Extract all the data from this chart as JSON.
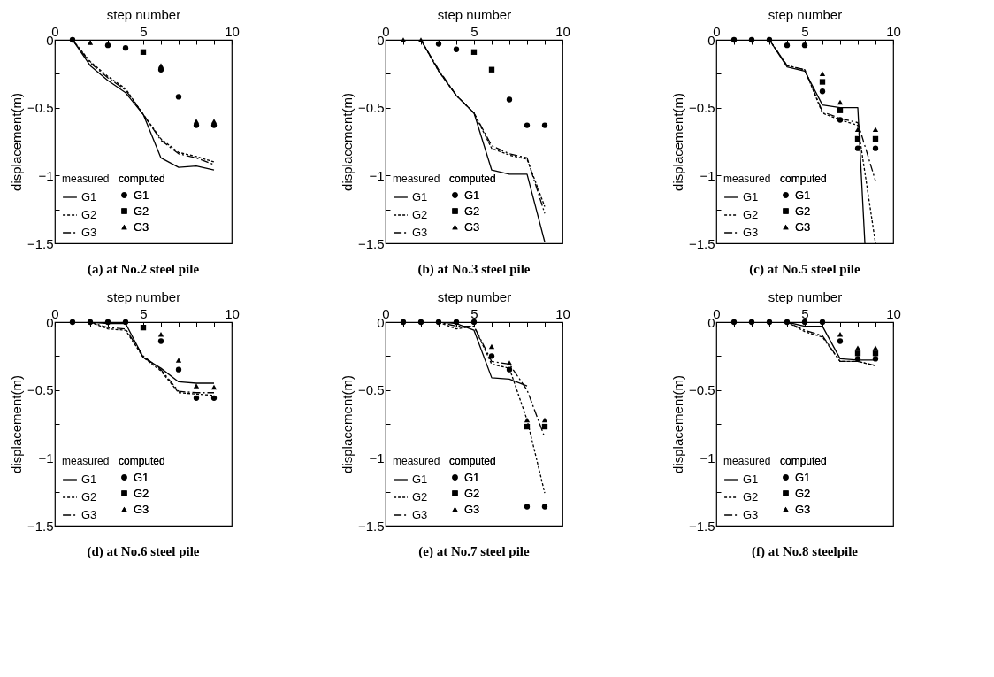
{
  "chart_data": [
    {
      "type": "line",
      "title": "(a)  at No.2 steel pile",
      "xlabel": "step number",
      "ylabel": "displacement(m)",
      "annotations": [
        "measured",
        "computed"
      ],
      "legend": "bottom left",
      "grid": false,
      "xlim": [
        0,
        10
      ],
      "ylim": [
        -1.5,
        0
      ],
      "xticks": [
        0,
        {
          "value": 1,
          "label": null
        },
        {
          "value": 2,
          "label": null
        },
        {
          "value": 3,
          "label": null
        },
        {
          "value": 4,
          "label": null
        },
        5,
        {
          "value": 6,
          "label": null
        },
        {
          "value": 7,
          "label": null
        },
        {
          "value": 8,
          "label": null
        },
        {
          "value": 9,
          "label": null
        },
        10
      ],
      "yticks": [
        0,
        {
          "value": -0.25,
          "label": null
        },
        -0.5,
        {
          "value": -0.75,
          "label": null
        },
        -1,
        {
          "value": -1.25,
          "label": null
        },
        -1.5
      ],
      "x": [
        1,
        2,
        3,
        4,
        5,
        6,
        7,
        8,
        9
      ],
      "series": [
        {
          "name": "G1",
          "type": "line",
          "line_style": "solid",
          "color": "#000000",
          "values": [
            0,
            -0.19,
            -0.3,
            -0.39,
            -0.55,
            -0.87,
            -0.94,
            -0.93,
            -0.96
          ]
        },
        {
          "name": "G2",
          "type": "line",
          "line_style": "dotted",
          "color": "#000000",
          "values": [
            0,
            -0.16,
            -0.27,
            -0.36,
            -0.55,
            -0.73,
            -0.83,
            -0.86,
            -0.9
          ]
        },
        {
          "name": "G3",
          "type": "line",
          "line_style": "dashed",
          "color": "#000000",
          "values": [
            0,
            -0.17,
            -0.28,
            -0.37,
            -0.55,
            -0.74,
            -0.84,
            -0.87,
            -0.92
          ]
        },
        {
          "name": "G1",
          "type": "scatter",
          "marker": "circle",
          "color": "#000000",
          "values": [
            0,
            null,
            -0.04,
            -0.06,
            null,
            -0.22,
            -0.42,
            -0.63,
            -0.63
          ]
        },
        {
          "name": "G2",
          "type": "scatter",
          "marker": "square",
          "color": "#000000",
          "values": [
            null,
            null,
            null,
            null,
            -0.09,
            null,
            null,
            null,
            null
          ]
        },
        {
          "name": "G3",
          "type": "scatter",
          "marker": "triangle",
          "color": "#000000",
          "values": [
            null,
            -0.02,
            null,
            null,
            null,
            -0.19,
            null,
            -0.6,
            -0.6
          ]
        }
      ]
    },
    {
      "type": "line",
      "title": "(b)  at No.3 steel pile",
      "xlabel": "step number",
      "ylabel": "displacement(m)",
      "annotations": [
        "measured",
        "computed"
      ],
      "legend": "bottom left",
      "grid": false,
      "xlim": [
        0,
        10
      ],
      "ylim": [
        -1.5,
        0
      ],
      "xticks": [
        0,
        {
          "value": 1,
          "label": null
        },
        {
          "value": 2,
          "label": null
        },
        {
          "value": 3,
          "label": null
        },
        {
          "value": 4,
          "label": null
        },
        5,
        {
          "value": 6,
          "label": null
        },
        {
          "value": 7,
          "label": null
        },
        {
          "value": 8,
          "label": null
        },
        {
          "value": 9,
          "label": null
        },
        10
      ],
      "yticks": [
        0,
        {
          "value": -0.25,
          "label": null
        },
        -0.5,
        {
          "value": -0.75,
          "label": null
        },
        -1,
        {
          "value": -1.25,
          "label": null
        },
        -1.5
      ],
      "x": [
        1,
        2,
        3,
        4,
        5,
        6,
        7,
        8,
        9
      ],
      "series": [
        {
          "name": "G1",
          "type": "line",
          "line_style": "solid",
          "color": "#000000",
          "values": [
            0,
            0,
            -0.23,
            -0.41,
            -0.54,
            -0.96,
            -0.99,
            -0.99,
            -1.49
          ]
        },
        {
          "name": "G2",
          "type": "line",
          "line_style": "dotted",
          "color": "#000000",
          "values": [
            0,
            0,
            -0.23,
            -0.41,
            -0.54,
            -0.8,
            -0.85,
            -0.88,
            -1.23
          ]
        },
        {
          "name": "G3",
          "type": "line",
          "line_style": "dashed",
          "color": "#000000",
          "values": [
            0,
            0,
            -0.22,
            -0.41,
            -0.54,
            -0.78,
            -0.84,
            -0.87,
            -1.28
          ]
        },
        {
          "name": "G1",
          "type": "scatter",
          "marker": "circle",
          "color": "#000000",
          "values": [
            null,
            null,
            -0.03,
            -0.07,
            null,
            null,
            -0.44,
            -0.63,
            -0.63
          ]
        },
        {
          "name": "G2",
          "type": "scatter",
          "marker": "square",
          "color": "#000000",
          "values": [
            null,
            null,
            null,
            null,
            -0.09,
            -0.22,
            null,
            null,
            null
          ]
        },
        {
          "name": "G3",
          "type": "scatter",
          "marker": "triangle",
          "color": "#000000",
          "values": [
            0,
            0,
            null,
            null,
            null,
            null,
            null,
            null,
            null
          ]
        }
      ]
    },
    {
      "type": "line",
      "title": "(c)  at No.5 steel pile",
      "xlabel": "step number",
      "ylabel": "displacement(m)",
      "annotations": [
        "measured",
        "computed"
      ],
      "legend": "bottom left",
      "grid": false,
      "xlim": [
        0,
        10
      ],
      "ylim": [
        -1.5,
        0
      ],
      "xticks": [
        0,
        {
          "value": 1,
          "label": null
        },
        {
          "value": 2,
          "label": null
        },
        {
          "value": 3,
          "label": null
        },
        {
          "value": 4,
          "label": null
        },
        5,
        {
          "value": 6,
          "label": null
        },
        {
          "value": 7,
          "label": null
        },
        {
          "value": 8,
          "label": null
        },
        {
          "value": 9,
          "label": null
        },
        10
      ],
      "yticks": [
        0,
        {
          "value": -0.25,
          "label": null
        },
        -0.5,
        {
          "value": -0.75,
          "label": null
        },
        -1,
        {
          "value": -1.25,
          "label": null
        },
        -1.5
      ],
      "x": [
        1,
        2,
        3,
        4,
        5,
        6,
        7,
        8,
        9
      ],
      "series": [
        {
          "name": "G1",
          "type": "line",
          "line_style": "solid",
          "color": "#000000",
          "x": [
            1,
            2,
            3,
            4,
            5,
            6,
            7,
            8,
            8.4
          ],
          "values": [
            0,
            0,
            0,
            -0.2,
            -0.23,
            -0.48,
            -0.5,
            -0.5,
            -1.5
          ]
        },
        {
          "name": "G2",
          "type": "line",
          "line_style": "dotted",
          "color": "#000000",
          "values": [
            0,
            0,
            0,
            -0.19,
            -0.22,
            -0.54,
            -0.59,
            -0.63,
            -1.5
          ]
        },
        {
          "name": "G3",
          "type": "line",
          "line_style": "dashed",
          "color": "#000000",
          "values": [
            0,
            0,
            0,
            -0.19,
            -0.22,
            -0.53,
            -0.58,
            -0.61,
            -1.04
          ]
        },
        {
          "name": "G1",
          "type": "scatter",
          "marker": "circle",
          "color": "#000000",
          "values": [
            0,
            0,
            0,
            -0.04,
            -0.04,
            -0.38,
            -0.59,
            -0.8,
            -0.8
          ]
        },
        {
          "name": "G2",
          "type": "scatter",
          "marker": "square",
          "color": "#000000",
          "values": [
            null,
            null,
            null,
            null,
            null,
            -0.31,
            -0.52,
            -0.73,
            -0.73
          ]
        },
        {
          "name": "G3",
          "type": "scatter",
          "marker": "triangle",
          "color": "#000000",
          "values": [
            null,
            null,
            null,
            null,
            null,
            -0.25,
            -0.46,
            -0.66,
            -0.66
          ]
        }
      ]
    },
    {
      "type": "line",
      "title": "(d)  at No.6 steel pile",
      "xlabel": "step number",
      "ylabel": "displacement(m)",
      "annotations": [
        "measured",
        "computed"
      ],
      "legend": "bottom left",
      "grid": false,
      "xlim": [
        0,
        10
      ],
      "ylim": [
        -1.5,
        0
      ],
      "xticks": [
        0,
        {
          "value": 1,
          "label": null
        },
        {
          "value": 2,
          "label": null
        },
        {
          "value": 3,
          "label": null
        },
        {
          "value": 4,
          "label": null
        },
        5,
        {
          "value": 6,
          "label": null
        },
        {
          "value": 7,
          "label": null
        },
        {
          "value": 8,
          "label": null
        },
        {
          "value": 9,
          "label": null
        },
        10
      ],
      "yticks": [
        0,
        {
          "value": -0.25,
          "label": null
        },
        -0.5,
        {
          "value": -0.75,
          "label": null
        },
        -1,
        {
          "value": -1.25,
          "label": null
        },
        -1.5
      ],
      "x": [
        1,
        2,
        3,
        4,
        5,
        6,
        7,
        8,
        9
      ],
      "series": [
        {
          "name": "G1",
          "type": "line",
          "line_style": "solid",
          "color": "#000000",
          "values": [
            0,
            0,
            -0.01,
            -0.01,
            -0.26,
            -0.34,
            -0.44,
            -0.45,
            -0.45
          ]
        },
        {
          "name": "G2",
          "type": "line",
          "line_style": "dotted",
          "color": "#000000",
          "values": [
            0,
            0,
            -0.05,
            -0.06,
            -0.26,
            -0.36,
            -0.52,
            -0.53,
            -0.54
          ]
        },
        {
          "name": "G3",
          "type": "line",
          "line_style": "dashed",
          "color": "#000000",
          "values": [
            0,
            0,
            -0.04,
            -0.05,
            -0.25,
            -0.35,
            -0.51,
            -0.52,
            -0.52
          ]
        },
        {
          "name": "G1",
          "type": "scatter",
          "marker": "circle",
          "color": "#000000",
          "values": [
            0,
            0,
            0,
            0,
            null,
            -0.14,
            -0.35,
            -0.56,
            -0.56
          ]
        },
        {
          "name": "G2",
          "type": "scatter",
          "marker": "square",
          "color": "#000000",
          "values": [
            null,
            null,
            null,
            null,
            -0.04,
            null,
            null,
            null,
            null
          ]
        },
        {
          "name": "G3",
          "type": "scatter",
          "marker": "triangle",
          "color": "#000000",
          "values": [
            null,
            null,
            null,
            null,
            null,
            -0.09,
            -0.28,
            -0.47,
            -0.48
          ]
        }
      ]
    },
    {
      "type": "line",
      "title": "(e)  at No.7 steel pile",
      "xlabel": "step number",
      "ylabel": "displacement(m)",
      "annotations": [
        "measured",
        "computed"
      ],
      "legend": "bottom left",
      "grid": false,
      "xlim": [
        0,
        10
      ],
      "ylim": [
        -1.5,
        0
      ],
      "xticks": [
        0,
        {
          "value": 1,
          "label": null
        },
        {
          "value": 2,
          "label": null
        },
        {
          "value": 3,
          "label": null
        },
        {
          "value": 4,
          "label": null
        },
        5,
        {
          "value": 6,
          "label": null
        },
        {
          "value": 7,
          "label": null
        },
        {
          "value": 8,
          "label": null
        },
        {
          "value": 9,
          "label": null
        },
        10
      ],
      "yticks": [
        0,
        {
          "value": -0.25,
          "label": null
        },
        -0.5,
        {
          "value": -0.75,
          "label": null
        },
        -1,
        {
          "value": -1.25,
          "label": null
        },
        -1.5
      ],
      "x": [
        1,
        2,
        3,
        4,
        5,
        6,
        7,
        8,
        9
      ],
      "series": [
        {
          "name": "G1",
          "type": "line",
          "line_style": "solid",
          "color": "#000000",
          "x": [
            1,
            2,
            3,
            4,
            5,
            6,
            7,
            8
          ],
          "values": [
            0,
            0,
            0,
            -0.01,
            -0.06,
            -0.41,
            -0.42,
            -0.47
          ]
        },
        {
          "name": "G2",
          "type": "line",
          "line_style": "dotted",
          "color": "#000000",
          "values": [
            0,
            0,
            0,
            -0.05,
            -0.03,
            -0.31,
            -0.34,
            -0.72,
            -1.26
          ]
        },
        {
          "name": "G3",
          "type": "line",
          "line_style": "dashed",
          "color": "#000000",
          "values": [
            0,
            0,
            0,
            -0.03,
            -0.03,
            -0.29,
            -0.31,
            -0.5,
            -0.85
          ]
        },
        {
          "name": "G1",
          "type": "scatter",
          "marker": "circle",
          "color": "#000000",
          "values": [
            0,
            0,
            0,
            0,
            0,
            -0.25,
            -0.35,
            -1.36,
            -1.36
          ]
        },
        {
          "name": "G2",
          "type": "scatter",
          "marker": "square",
          "color": "#000000",
          "values": [
            null,
            null,
            null,
            null,
            null,
            null,
            null,
            -0.77,
            -0.77
          ]
        },
        {
          "name": "G3",
          "type": "scatter",
          "marker": "triangle",
          "color": "#000000",
          "values": [
            null,
            null,
            null,
            null,
            null,
            -0.18,
            -0.3,
            -0.72,
            -0.72
          ]
        }
      ]
    },
    {
      "type": "line",
      "title": "(f)  at No.8 steelpile",
      "xlabel": "step number",
      "ylabel": "displacement(m)",
      "annotations": [
        "measured",
        "computed"
      ],
      "legend": "bottom left",
      "grid": false,
      "xlim": [
        0,
        10
      ],
      "ylim": [
        -1.5,
        0
      ],
      "xticks": [
        0,
        {
          "value": 1,
          "label": null
        },
        {
          "value": 2,
          "label": null
        },
        {
          "value": 3,
          "label": null
        },
        {
          "value": 4,
          "label": null
        },
        5,
        {
          "value": 6,
          "label": null
        },
        {
          "value": 7,
          "label": null
        },
        {
          "value": 8,
          "label": null
        },
        {
          "value": 9,
          "label": null
        },
        10
      ],
      "yticks": [
        0,
        {
          "value": -0.25,
          "label": null
        },
        -0.5,
        {
          "value": -0.75,
          "label": null
        },
        -1,
        {
          "value": -1.25,
          "label": null
        },
        -1.5
      ],
      "x": [
        1,
        2,
        3,
        4,
        5,
        6,
        7,
        8,
        9
      ],
      "series": [
        {
          "name": "G1",
          "type": "line",
          "line_style": "solid",
          "color": "#000000",
          "values": [
            0,
            0,
            0,
            0,
            -0.03,
            -0.03,
            -0.27,
            -0.28,
            -0.28
          ]
        },
        {
          "name": "G2",
          "type": "line",
          "line_style": "dotted",
          "color": "#000000",
          "values": [
            0,
            0,
            0,
            0,
            -0.07,
            -0.11,
            -0.29,
            -0.29,
            -0.32
          ]
        },
        {
          "name": "G3",
          "type": "line",
          "line_style": "dashed",
          "color": "#000000",
          "values": [
            0,
            0,
            0,
            0,
            -0.06,
            -0.1,
            -0.29,
            -0.29,
            -0.32
          ]
        },
        {
          "name": "G1",
          "type": "scatter",
          "marker": "circle",
          "color": "#000000",
          "values": [
            0,
            0,
            0,
            0,
            0,
            0,
            -0.14,
            -0.27,
            -0.27
          ]
        },
        {
          "name": "G2",
          "type": "scatter",
          "marker": "square",
          "color": "#000000",
          "values": [
            null,
            null,
            null,
            null,
            null,
            null,
            null,
            -0.23,
            -0.23
          ]
        },
        {
          "name": "G3",
          "type": "scatter",
          "marker": "triangle",
          "color": "#000000",
          "values": [
            null,
            null,
            null,
            null,
            null,
            null,
            -0.09,
            -0.19,
            -0.19
          ]
        }
      ]
    }
  ]
}
